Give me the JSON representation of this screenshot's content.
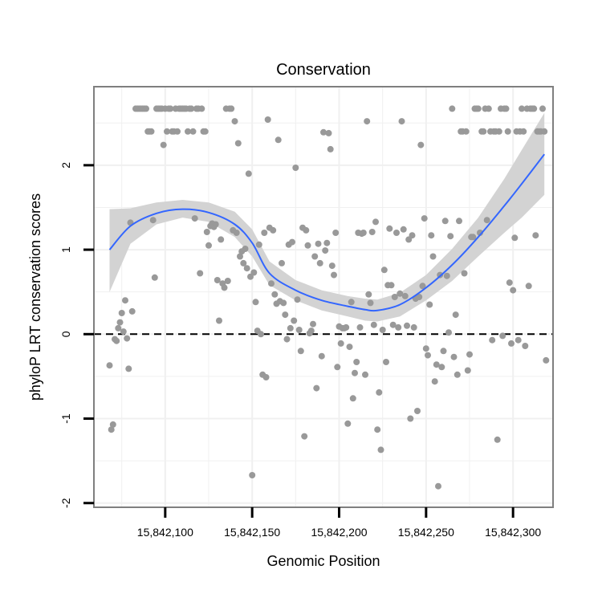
{
  "chart_data": {
    "type": "scatter",
    "title": "Conservation",
    "xlabel": "Genomic Position",
    "ylabel": "phyloP LRT conservation scores",
    "xlim": [
      15842059,
      15842323
    ],
    "ylim": [
      -2.05,
      2.93
    ],
    "x_ticks": [
      15842100,
      15842150,
      15842200,
      15842250,
      15842300
    ],
    "x_tick_labels": [
      "15,842,100",
      "15,842,150",
      "15,842,200",
      "15,842,250",
      "15,842,300"
    ],
    "y_ticks": [
      -2,
      -1,
      0,
      1,
      2
    ],
    "y_tick_labels": [
      "-2",
      "-1",
      "0",
      "1",
      "2"
    ],
    "grid": true,
    "reference_line": {
      "y": 0,
      "style": "dashed"
    },
    "colors": {
      "points": "#999999",
      "smooth": "#3366ff",
      "ribbon": "#d3d3d3",
      "panel_border": "#7f7f7f",
      "grid": "#f0f0f0"
    },
    "points": [
      [
        15842068,
        -0.37
      ],
      [
        15842069,
        -1.13
      ],
      [
        15842070,
        -1.07
      ],
      [
        15842071,
        -0.06
      ],
      [
        15842072,
        -0.08
      ],
      [
        15842073,
        0.07
      ],
      [
        15842074,
        0.14
      ],
      [
        15842075,
        0.25
      ],
      [
        15842076,
        0.03
      ],
      [
        15842077,
        0.4
      ],
      [
        15842078,
        -0.05
      ],
      [
        15842079,
        -0.41
      ],
      [
        15842080,
        1.32
      ],
      [
        15842081,
        0.27
      ],
      [
        15842083,
        2.67
      ],
      [
        15842084,
        2.67
      ],
      [
        15842085,
        2.67
      ],
      [
        15842086,
        2.67
      ],
      [
        15842087,
        2.67
      ],
      [
        15842088,
        2.67
      ],
      [
        15842089,
        2.67
      ],
      [
        15842090,
        2.4
      ],
      [
        15842091,
        2.4
      ],
      [
        15842092,
        2.4
      ],
      [
        15842093,
        1.35
      ],
      [
        15842094,
        0.67
      ],
      [
        15842095,
        2.67
      ],
      [
        15842096,
        2.67
      ],
      [
        15842097,
        2.67
      ],
      [
        15842098,
        2.67
      ],
      [
        15842099,
        2.24
      ],
      [
        15842100,
        2.67
      ],
      [
        15842101,
        2.4
      ],
      [
        15842102,
        2.67
      ],
      [
        15842103,
        2.67
      ],
      [
        15842104,
        2.4
      ],
      [
        15842105,
        2.4
      ],
      [
        15842106,
        2.67
      ],
      [
        15842107,
        2.4
      ],
      [
        15842108,
        2.67
      ],
      [
        15842109,
        2.67
      ],
      [
        15842110,
        2.67
      ],
      [
        15842111,
        2.67
      ],
      [
        15842112,
        2.67
      ],
      [
        15842113,
        2.4
      ],
      [
        15842114,
        2.67
      ],
      [
        15842115,
        2.67
      ],
      [
        15842116,
        2.4
      ],
      [
        15842117,
        1.37
      ],
      [
        15842118,
        2.67
      ],
      [
        15842119,
        2.67
      ],
      [
        15842120,
        0.72
      ],
      [
        15842121,
        2.67
      ],
      [
        15842122,
        2.4
      ],
      [
        15842123,
        2.4
      ],
      [
        15842124,
        1.21
      ],
      [
        15842125,
        1.05
      ],
      [
        15842126,
        1.28
      ],
      [
        15842127,
        1.31
      ],
      [
        15842128,
        1.27
      ],
      [
        15842129,
        1.3
      ],
      [
        15842130,
        0.64
      ],
      [
        15842131,
        0.16
      ],
      [
        15842132,
        1.12
      ],
      [
        15842133,
        0.6
      ],
      [
        15842134,
        0.55
      ],
      [
        15842135,
        2.67
      ],
      [
        15842136,
        0.63
      ],
      [
        15842137,
        2.67
      ],
      [
        15842138,
        2.67
      ],
      [
        15842139,
        1.23
      ],
      [
        15842140,
        2.52
      ],
      [
        15842141,
        1.2
      ],
      [
        15842142,
        2.26
      ],
      [
        15842143,
        0.92
      ],
      [
        15842144,
        0.98
      ],
      [
        15842145,
        0.84
      ],
      [
        15842146,
        1.01
      ],
      [
        15842147,
        0.78
      ],
      [
        15842148,
        1.9
      ],
      [
        15842149,
        0.68
      ],
      [
        15842150,
        -1.67
      ],
      [
        15842151,
        0.73
      ],
      [
        15842152,
        0.38
      ],
      [
        15842153,
        0.04
      ],
      [
        15842154,
        1.06
      ],
      [
        15842155,
        0.0
      ],
      [
        15842156,
        -0.48
      ],
      [
        15842157,
        1.2
      ],
      [
        15842158,
        -0.51
      ],
      [
        15842159,
        2.54
      ],
      [
        15842160,
        1.26
      ],
      [
        15842161,
        0.6
      ],
      [
        15842162,
        1.23
      ],
      [
        15842163,
        0.47
      ],
      [
        15842164,
        0.36
      ],
      [
        15842165,
        2.3
      ],
      [
        15842166,
        0.39
      ],
      [
        15842167,
        0.84
      ],
      [
        15842168,
        0.37
      ],
      [
        15842169,
        0.23
      ],
      [
        15842170,
        -0.06
      ],
      [
        15842171,
        1.06
      ],
      [
        15842172,
        0.07
      ],
      [
        15842173,
        1.09
      ],
      [
        15842174,
        0.16
      ],
      [
        15842175,
        1.97
      ],
      [
        15842176,
        0.41
      ],
      [
        15842177,
        0.05
      ],
      [
        15842178,
        -0.2
      ],
      [
        15842179,
        1.26
      ],
      [
        15842180,
        -1.21
      ],
      [
        15842181,
        1.23
      ],
      [
        15842182,
        1.05
      ],
      [
        15842183,
        0.01
      ],
      [
        15842184,
        0.04
      ],
      [
        15842185,
        0.12
      ],
      [
        15842186,
        0.92
      ],
      [
        15842187,
        -0.64
      ],
      [
        15842188,
        1.07
      ],
      [
        15842189,
        0.84
      ],
      [
        15842190,
        -0.26
      ],
      [
        15842191,
        2.39
      ],
      [
        15842192,
        0.99
      ],
      [
        15842193,
        1.08
      ],
      [
        15842194,
        2.38
      ],
      [
        15842195,
        2.19
      ],
      [
        15842196,
        0.81
      ],
      [
        15842197,
        0.7
      ],
      [
        15842198,
        1.2
      ],
      [
        15842199,
        -0.39
      ],
      [
        15842200,
        0.09
      ],
      [
        15842201,
        -0.11
      ],
      [
        15842202,
        0.07
      ],
      [
        15842203,
        0.07
      ],
      [
        15842204,
        0.08
      ],
      [
        15842205,
        -1.06
      ],
      [
        15842206,
        -0.15
      ],
      [
        15842207,
        0.38
      ],
      [
        15842208,
        -0.76
      ],
      [
        15842209,
        -0.46
      ],
      [
        15842210,
        -0.33
      ],
      [
        15842211,
        1.2
      ],
      [
        15842212,
        0.08
      ],
      [
        15842213,
        1.19
      ],
      [
        15842214,
        1.2
      ],
      [
        15842215,
        -0.48
      ],
      [
        15842216,
        2.52
      ],
      [
        15842217,
        0.47
      ],
      [
        15842218,
        0.37
      ],
      [
        15842219,
        1.21
      ],
      [
        15842220,
        0.11
      ],
      [
        15842221,
        1.33
      ],
      [
        15842222,
        -1.13
      ],
      [
        15842223,
        -0.69
      ],
      [
        15842224,
        -1.37
      ],
      [
        15842225,
        0.05
      ],
      [
        15842226,
        0.76
      ],
      [
        15842227,
        -0.33
      ],
      [
        15842228,
        0.58
      ],
      [
        15842229,
        1.25
      ],
      [
        15842230,
        0.58
      ],
      [
        15842231,
        0.11
      ],
      [
        15842232,
        0.44
      ],
      [
        15842233,
        1.2
      ],
      [
        15842234,
        0.08
      ],
      [
        15842235,
        0.48
      ],
      [
        15842236,
        2.52
      ],
      [
        15842237,
        1.24
      ],
      [
        15842238,
        0.45
      ],
      [
        15842239,
        0.1
      ],
      [
        15842240,
        1.12
      ],
      [
        15842241,
        -1.0
      ],
      [
        15842242,
        1.17
      ],
      [
        15842243,
        0.08
      ],
      [
        15842244,
        0.42
      ],
      [
        15842245,
        -0.91
      ],
      [
        15842246,
        0.44
      ],
      [
        15842247,
        2.24
      ],
      [
        15842248,
        0.57
      ],
      [
        15842249,
        1.37
      ],
      [
        15842250,
        -0.17
      ],
      [
        15842251,
        -0.25
      ],
      [
        15842252,
        0.35
      ],
      [
        15842253,
        1.17
      ],
      [
        15842254,
        0.92
      ],
      [
        15842255,
        -0.56
      ],
      [
        15842256,
        -0.36
      ],
      [
        15842257,
        -1.8
      ],
      [
        15842258,
        0.7
      ],
      [
        15842259,
        -0.39
      ],
      [
        15842260,
        -0.2
      ],
      [
        15842261,
        1.34
      ],
      [
        15842262,
        0.69
      ],
      [
        15842263,
        0.02
      ],
      [
        15842264,
        1.16
      ],
      [
        15842265,
        2.67
      ],
      [
        15842266,
        -0.27
      ],
      [
        15842267,
        0.23
      ],
      [
        15842268,
        -0.48
      ],
      [
        15842269,
        1.34
      ],
      [
        15842270,
        2.4
      ],
      [
        15842271,
        2.4
      ],
      [
        15842272,
        0.72
      ],
      [
        15842273,
        2.4
      ],
      [
        15842274,
        -0.43
      ],
      [
        15842275,
        -0.24
      ],
      [
        15842276,
        1.15
      ],
      [
        15842277,
        1.15
      ],
      [
        15842278,
        2.67
      ],
      [
        15842279,
        2.67
      ],
      [
        15842280,
        2.67
      ],
      [
        15842281,
        1.2
      ],
      [
        15842282,
        2.4
      ],
      [
        15842283,
        2.4
      ],
      [
        15842284,
        2.67
      ],
      [
        15842285,
        1.35
      ],
      [
        15842286,
        2.67
      ],
      [
        15842287,
        2.4
      ],
      [
        15842288,
        -0.07
      ],
      [
        15842289,
        2.4
      ],
      [
        15842290,
        2.4
      ],
      [
        15842291,
        -1.25
      ],
      [
        15842292,
        2.4
      ],
      [
        15842293,
        2.67
      ],
      [
        15842294,
        -0.02
      ],
      [
        15842295,
        2.67
      ],
      [
        15842296,
        2.67
      ],
      [
        15842297,
        2.4
      ],
      [
        15842298,
        0.61
      ],
      [
        15842299,
        -0.11
      ],
      [
        15842300,
        0.52
      ],
      [
        15842301,
        1.14
      ],
      [
        15842302,
        2.4
      ],
      [
        15842303,
        -0.07
      ],
      [
        15842304,
        2.4
      ],
      [
        15842305,
        2.67
      ],
      [
        15842306,
        2.4
      ],
      [
        15842307,
        -0.14
      ],
      [
        15842308,
        2.67
      ],
      [
        15842309,
        0.57
      ],
      [
        15842310,
        2.67
      ],
      [
        15842311,
        2.67
      ],
      [
        15842312,
        2.67
      ],
      [
        15842313,
        1.17
      ],
      [
        15842314,
        2.4
      ],
      [
        15842315,
        2.4
      ],
      [
        15842316,
        2.4
      ],
      [
        15842317,
        2.67
      ],
      [
        15842318,
        2.4
      ],
      [
        15842319,
        -0.31
      ]
    ],
    "smooth": {
      "x": [
        15842068,
        15842080,
        15842095,
        15842110,
        15842125,
        15842140,
        15842150,
        15842160,
        15842175,
        15842190,
        15842205,
        15842215,
        15842222,
        15842235,
        15842250,
        15842265,
        15842280,
        15842295,
        15842305,
        15842318
      ],
      "y": [
        1.0,
        1.28,
        1.43,
        1.48,
        1.44,
        1.3,
        1.08,
        0.72,
        0.52,
        0.4,
        0.33,
        0.29,
        0.28,
        0.35,
        0.55,
        0.82,
        1.15,
        1.52,
        1.78,
        2.13
      ],
      "lower": [
        0.5,
        1.07,
        1.3,
        1.38,
        1.33,
        1.15,
        0.92,
        0.58,
        0.4,
        0.28,
        0.21,
        0.16,
        0.15,
        0.21,
        0.4,
        0.63,
        0.92,
        1.2,
        1.38,
        1.65
      ],
      "upper": [
        1.48,
        1.49,
        1.56,
        1.59,
        1.56,
        1.45,
        1.24,
        0.86,
        0.64,
        0.52,
        0.45,
        0.42,
        0.41,
        0.49,
        0.7,
        1.01,
        1.38,
        1.84,
        2.18,
        2.62
      ]
    }
  }
}
